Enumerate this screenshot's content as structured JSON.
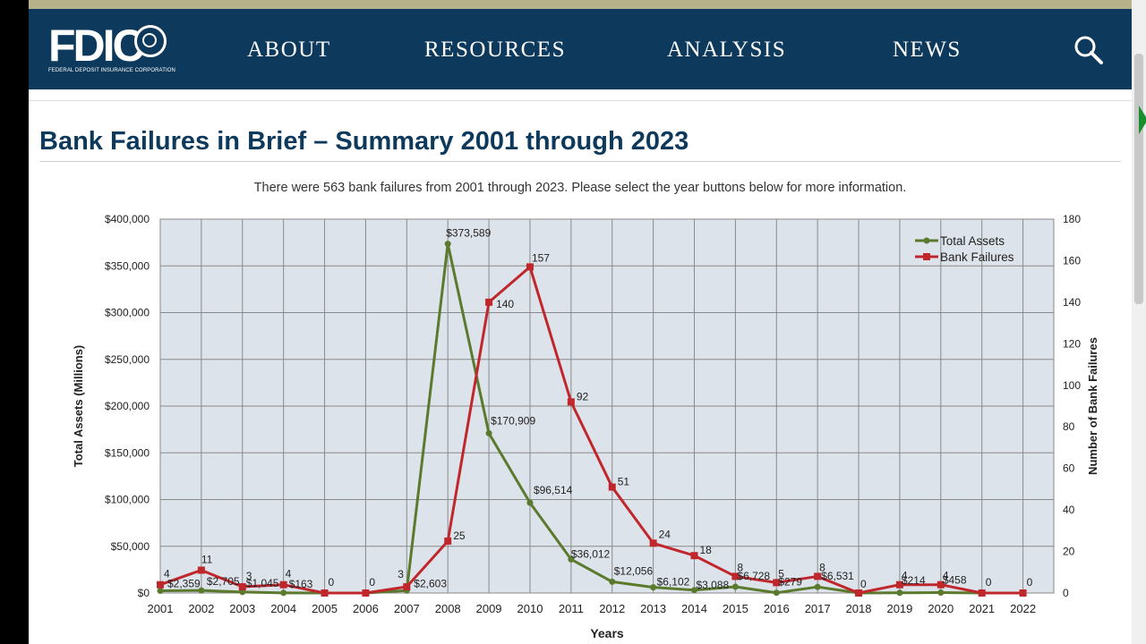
{
  "nav": {
    "logo_text": "FDIC",
    "logo_subtext": "FEDERAL DEPOSIT INSURANCE CORPORATION",
    "items": [
      "ABOUT",
      "RESOURCES",
      "ANALYSIS",
      "NEWS"
    ],
    "search_icon": "search-icon"
  },
  "page": {
    "title": "Bank Failures in Brief – Summary 2001 through 2023",
    "subtitle": "There were 563 bank failures from 2001 through 2023. Please select the year buttons below for more information."
  },
  "colors": {
    "nav_bg": "#0d3a5c",
    "title": "#0d3a5c",
    "total_assets": "#5b7a2e",
    "bank_failures": "#c0272d",
    "plot_bg": "#dde3ea"
  },
  "chart_data": {
    "type": "line",
    "x": [
      "2001",
      "2002",
      "2003",
      "2004",
      "2005",
      "2006",
      "2007",
      "2008",
      "2009",
      "2010",
      "2011",
      "2012",
      "2013",
      "2014",
      "2015",
      "2016",
      "2017",
      "2018",
      "2019",
      "2020",
      "2021",
      "2022"
    ],
    "xlabel": "Years",
    "ylabel_left": "Total Assets (Millions)",
    "ylabel_right": "Number of Bank Failures",
    "ylim_left": [
      0,
      400000
    ],
    "ylim_right": [
      0,
      180
    ],
    "yticks_left": [
      "$0",
      "$50,000",
      "$100,000",
      "$150,000",
      "$200,000",
      "$250,000",
      "$300,000",
      "$350,000",
      "$400,000"
    ],
    "yticks_right": [
      "0",
      "20",
      "40",
      "60",
      "80",
      "100",
      "120",
      "140",
      "160",
      "180"
    ],
    "grid": true,
    "legend_position": "top-right",
    "series": [
      {
        "name": "Total Assets",
        "axis": "left",
        "values": [
          2359,
          2705,
          1045,
          163,
          0,
          0,
          2603,
          373589,
          170909,
          96514,
          36012,
          12056,
          6102,
          3088,
          6728,
          279,
          6531,
          0,
          214,
          458,
          0,
          0
        ],
        "labels": [
          "$2,359",
          "$2,705",
          "$1,045",
          "$163",
          "",
          "",
          "$2,603",
          "$373,589",
          "$170,909",
          "$96,514",
          "$36,012",
          "$12,056",
          "$6,102",
          "$3,088",
          "$6,728",
          "$279",
          "$6,531",
          "",
          "$214",
          "$458",
          "",
          ""
        ]
      },
      {
        "name": "Bank Failures",
        "axis": "right",
        "values": [
          4,
          11,
          3,
          4,
          0,
          0,
          3,
          25,
          140,
          157,
          92,
          51,
          24,
          18,
          8,
          5,
          8,
          0,
          4,
          4,
          0,
          0
        ],
        "labels": [
          "4",
          "11",
          "3",
          "4",
          "0",
          "0",
          "3",
          "25",
          "140",
          "157",
          "92",
          "51",
          "24",
          "18",
          "8",
          "5",
          "8",
          "0",
          "4",
          "4",
          "0",
          "0"
        ]
      }
    ]
  }
}
